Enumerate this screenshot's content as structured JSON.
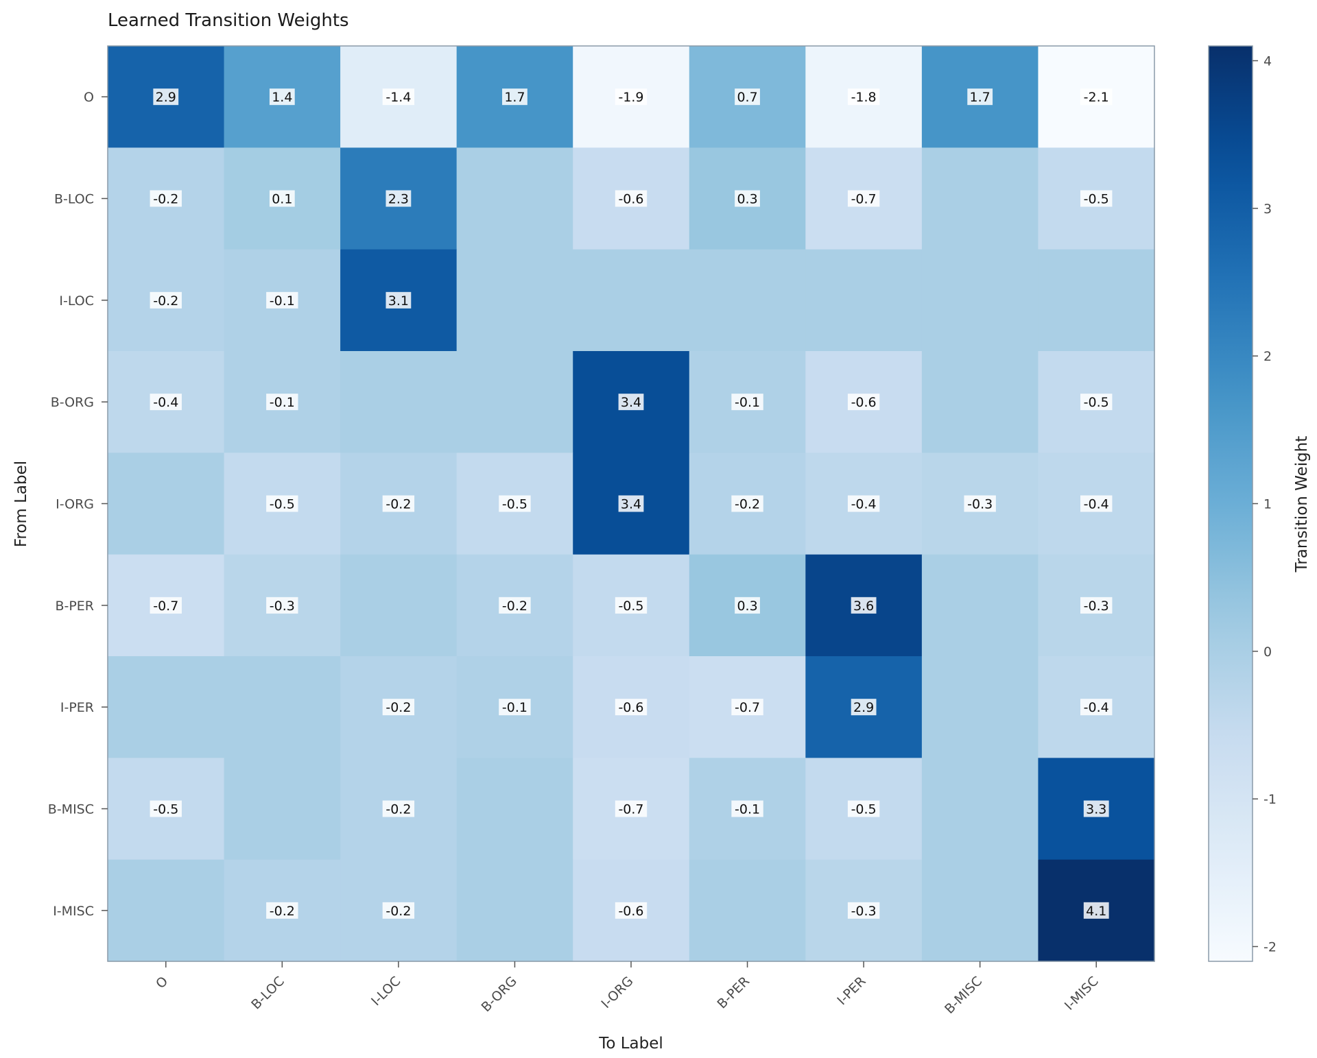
{
  "chart_data": {
    "type": "heatmap",
    "title": "Learned Transition Weights",
    "xlabel": "To Label",
    "ylabel": "From Label",
    "x_categories": [
      "O",
      "B-LOC",
      "I-LOC",
      "B-ORG",
      "I-ORG",
      "B-PER",
      "I-PER",
      "B-MISC",
      "I-MISC"
    ],
    "y_categories": [
      "O",
      "B-LOC",
      "I-LOC",
      "B-ORG",
      "I-ORG",
      "B-PER",
      "I-PER",
      "B-MISC",
      "I-MISC"
    ],
    "values": [
      [
        2.9,
        1.4,
        -1.4,
        1.7,
        -1.9,
        0.7,
        -1.8,
        1.7,
        -2.1
      ],
      [
        -0.2,
        0.1,
        2.3,
        0.0,
        -0.6,
        0.3,
        -0.7,
        0.0,
        -0.5
      ],
      [
        -0.2,
        -0.1,
        3.1,
        0.0,
        0.0,
        0.0,
        0.0,
        0.0,
        0.0
      ],
      [
        -0.4,
        -0.1,
        0.0,
        0.0,
        3.4,
        -0.1,
        -0.6,
        0.0,
        -0.5
      ],
      [
        0.0,
        -0.5,
        -0.2,
        -0.5,
        3.4,
        -0.2,
        -0.4,
        -0.3,
        -0.4
      ],
      [
        -0.7,
        -0.3,
        0.0,
        -0.2,
        -0.5,
        0.3,
        3.6,
        0.0,
        -0.3
      ],
      [
        0.0,
        0.0,
        -0.2,
        -0.1,
        -0.6,
        -0.7,
        2.9,
        0.0,
        -0.4
      ],
      [
        -0.5,
        0.0,
        -0.2,
        0.0,
        -0.7,
        -0.1,
        -0.5,
        0.0,
        3.3
      ],
      [
        0.0,
        -0.2,
        -0.2,
        0.0,
        -0.6,
        0.0,
        -0.3,
        0.0,
        4.1
      ]
    ],
    "annotations": [
      [
        "2.9",
        "1.4",
        "-1.4",
        "1.7",
        "-1.9",
        "0.7",
        "-1.8",
        "1.7",
        "-2.1"
      ],
      [
        "-0.2",
        "0.1",
        "2.3",
        "",
        "-0.6",
        "0.3",
        "-0.7",
        "",
        "-0.5"
      ],
      [
        "-0.2",
        "-0.1",
        "3.1",
        "",
        "",
        "",
        "",
        "",
        ""
      ],
      [
        "-0.4",
        "-0.1",
        "",
        "",
        "3.4",
        "-0.1",
        "-0.6",
        "",
        "-0.5"
      ],
      [
        "",
        "-0.5",
        "-0.2",
        "-0.5",
        "3.4",
        "-0.2",
        "-0.4",
        "-0.3",
        "-0.4"
      ],
      [
        "-0.7",
        "-0.3",
        "",
        "-0.2",
        "-0.5",
        "0.3",
        "3.6",
        "",
        "-0.3"
      ],
      [
        "",
        "",
        "-0.2",
        "-0.1",
        "-0.6",
        "-0.7",
        "2.9",
        "",
        "-0.4"
      ],
      [
        "-0.5",
        "",
        "-0.2",
        "",
        "-0.7",
        "-0.1",
        "-0.5",
        "",
        "3.3"
      ],
      [
        "",
        "-0.2",
        "-0.2",
        "",
        "-0.6",
        "",
        "-0.3",
        "",
        "4.1"
      ]
    ],
    "colorbar": {
      "label": "Transition Weight",
      "min": -2.1,
      "max": 4.1,
      "ticks": [
        "-2",
        "-1",
        "0",
        "1",
        "2",
        "3",
        "4"
      ],
      "colormap": "Blues"
    }
  }
}
